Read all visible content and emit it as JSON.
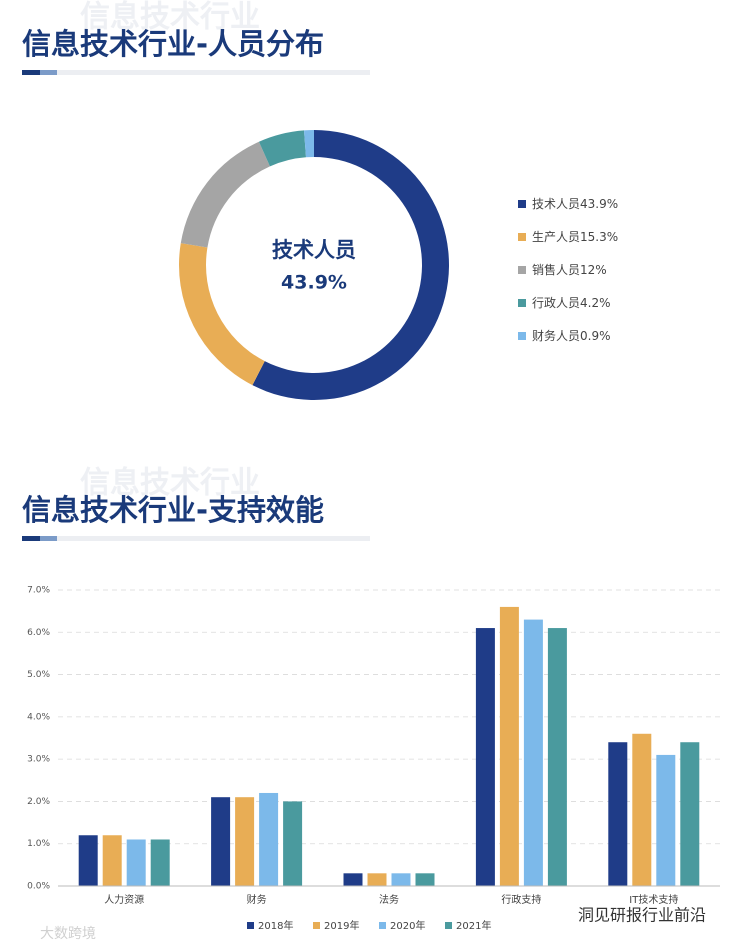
{
  "sections": [
    {
      "title": "信息技术行业-人员分布",
      "watermark": "信息技术行业"
    },
    {
      "title": "信息技术行业-支持效能",
      "watermark": "信息技术行业"
    }
  ],
  "chart_data": [
    {
      "type": "donut",
      "categories": [
        "技术人员",
        "生产人员",
        "销售人员",
        "行政人员",
        "财务人员"
      ],
      "values": [
        43.9,
        15.3,
        12,
        4.2,
        0.9
      ],
      "value_labels": [
        "43.9%",
        "15.3%",
        "12%",
        "4.2%",
        "0.9%"
      ],
      "colors": [
        "#1f3c88",
        "#e8ad55",
        "#a5a5a5",
        "#4a9a9e",
        "#7cb9ea"
      ],
      "legend": "right"
    },
    {
      "type": "bar",
      "categories": [
        "人力资源",
        "财务",
        "法务",
        "行政支持",
        "IT技术支持"
      ],
      "series": [
        {
          "name": "2018年",
          "color": "#1f3c88",
          "values": [
            1.2,
            2.1,
            0.3,
            6.1,
            3.4
          ]
        },
        {
          "name": "2019年",
          "color": "#e8ad55",
          "values": [
            1.2,
            2.1,
            0.3,
            6.6,
            3.6
          ]
        },
        {
          "name": "2020年",
          "color": "#7cb9ea",
          "values": [
            1.1,
            2.2,
            0.3,
            6.3,
            3.1
          ]
        },
        {
          "name": "2021年",
          "color": "#4a9a9e",
          "values": [
            1.1,
            2.0,
            0.3,
            6.1,
            3.4
          ]
        }
      ],
      "ylim": [
        0,
        7
      ],
      "yticks": [
        {
          "value": 0,
          "label": "0.0%"
        },
        {
          "value": 1,
          "label": "1.0%"
        },
        {
          "value": 2,
          "label": "2.0%"
        },
        {
          "value": 3,
          "label": "3.0%"
        },
        {
          "value": 4,
          "label": "4.0%"
        },
        {
          "value": 5,
          "label": "5.0%"
        },
        {
          "value": 6,
          "label": "6.0%"
        },
        {
          "value": 7,
          "label": "7.0%"
        }
      ],
      "grid": true,
      "legend": "bottom"
    }
  ],
  "watermarks": [
    "大数跨境",
    "洞见研报行业前沿"
  ]
}
